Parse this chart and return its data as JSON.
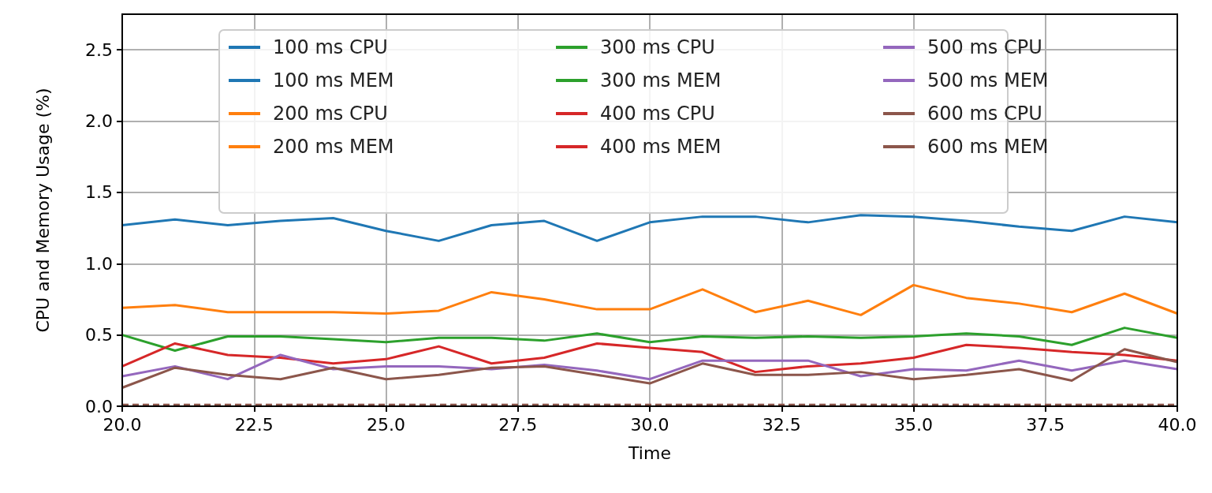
{
  "chart_data": {
    "type": "line",
    "xlabel": "Time",
    "ylabel": "CPU and Memory Usage (%)",
    "x": [
      20,
      21,
      22,
      23,
      24,
      25,
      26,
      27,
      28,
      29,
      30,
      31,
      32,
      33,
      34,
      35,
      36,
      37,
      38,
      39,
      40
    ],
    "xlim": [
      20,
      40
    ],
    "ylim": [
      0,
      2.75
    ],
    "xticks": [
      {
        "value": 20,
        "label": "20.0"
      },
      {
        "value": 22.5,
        "label": "22.5"
      },
      {
        "value": 25,
        "label": "25.0"
      },
      {
        "value": 27.5,
        "label": "27.5"
      },
      {
        "value": 30,
        "label": "30.0"
      },
      {
        "value": 32.5,
        "label": "32.5"
      },
      {
        "value": 35,
        "label": "35.0"
      },
      {
        "value": 37.5,
        "label": "37.5"
      },
      {
        "value": 40,
        "label": "40.0"
      }
    ],
    "yticks": [
      {
        "value": 0,
        "label": "0.0"
      },
      {
        "value": 0.5,
        "label": "0.5"
      },
      {
        "value": 1,
        "label": "1.0"
      },
      {
        "value": 1.5,
        "label": "1.5"
      },
      {
        "value": 2,
        "label": "2.0"
      },
      {
        "value": 2.5,
        "label": "2.5"
      }
    ],
    "grid": true,
    "legend": "top right",
    "marker": "none",
    "series": [
      {
        "name": "100 ms CPU",
        "color": "#1f77b4",
        "line_style": "solid",
        "values": [
          1.27,
          1.31,
          1.27,
          1.3,
          1.32,
          1.23,
          1.16,
          1.27,
          1.3,
          1.16,
          1.29,
          1.33,
          1.33,
          1.29,
          1.34,
          1.33,
          1.3,
          1.26,
          1.23,
          1.33,
          1.29
        ]
      },
      {
        "name": "100 ms MEM",
        "color": "#1f77b4",
        "line_style": "dashed",
        "values": [
          null,
          null,
          null,
          null,
          null,
          null,
          null,
          null,
          null,
          null,
          null,
          null,
          null,
          null,
          null,
          null,
          null,
          null,
          null,
          null,
          null
        ]
      },
      {
        "name": "200 ms CPU",
        "color": "#ff7f0e",
        "line_style": "solid",
        "values": [
          0.69,
          0.71,
          0.66,
          0.66,
          0.66,
          0.65,
          0.67,
          0.8,
          0.75,
          0.68,
          0.68,
          0.82,
          0.66,
          0.74,
          0.64,
          0.85,
          0.76,
          0.72,
          0.66,
          0.79,
          0.65
        ]
      },
      {
        "name": "200 ms MEM",
        "color": "#ff7f0e",
        "line_style": "dashed",
        "values": [
          null,
          null,
          null,
          null,
          null,
          null,
          null,
          null,
          null,
          null,
          null,
          null,
          null,
          null,
          null,
          null,
          null,
          null,
          null,
          null,
          null
        ]
      },
      {
        "name": "300 ms CPU",
        "color": "#2ca02c",
        "line_style": "solid",
        "values": [
          0.5,
          0.39,
          0.49,
          0.49,
          0.47,
          0.45,
          0.48,
          0.48,
          0.46,
          0.51,
          0.45,
          0.49,
          0.48,
          0.49,
          0.48,
          0.49,
          0.51,
          0.49,
          0.43,
          0.55,
          0.48
        ]
      },
      {
        "name": "300 ms MEM",
        "color": "#2ca02c",
        "line_style": "dashed",
        "values": [
          null,
          null,
          null,
          null,
          null,
          null,
          null,
          null,
          null,
          null,
          null,
          null,
          null,
          null,
          null,
          null,
          null,
          null,
          null,
          null,
          null
        ]
      },
      {
        "name": "400 ms CPU",
        "color": "#d62728",
        "line_style": "solid",
        "values": [
          0.28,
          0.44,
          0.36,
          0.34,
          0.3,
          0.33,
          0.42,
          0.3,
          0.34,
          0.44,
          0.41,
          0.38,
          0.24,
          0.28,
          0.3,
          0.34,
          0.43,
          0.41,
          0.38,
          0.36,
          0.32
        ]
      },
      {
        "name": "400 ms MEM",
        "color": "#d62728",
        "line_style": "dashed",
        "values": [
          null,
          null,
          null,
          null,
          null,
          null,
          null,
          null,
          null,
          null,
          null,
          null,
          null,
          null,
          null,
          null,
          null,
          null,
          null,
          null,
          null
        ]
      },
      {
        "name": "500 ms CPU",
        "color": "#9467bd",
        "line_style": "solid",
        "values": [
          0.21,
          0.28,
          0.19,
          0.36,
          0.26,
          0.28,
          0.28,
          0.26,
          0.29,
          0.25,
          0.19,
          0.32,
          0.32,
          0.32,
          0.21,
          0.26,
          0.25,
          0.32,
          0.25,
          0.32,
          0.26
        ]
      },
      {
        "name": "500 ms MEM",
        "color": "#9467bd",
        "line_style": "dashed",
        "values": [
          null,
          null,
          null,
          null,
          null,
          null,
          null,
          null,
          null,
          null,
          null,
          null,
          null,
          null,
          null,
          null,
          null,
          null,
          null,
          null,
          null
        ]
      },
      {
        "name": "600 ms CPU",
        "color": "#8c564b",
        "line_style": "solid",
        "values": [
          0.13,
          0.27,
          0.22,
          0.19,
          0.27,
          0.19,
          0.22,
          0.27,
          0.28,
          0.22,
          0.16,
          0.3,
          0.22,
          0.22,
          0.24,
          0.19,
          0.22,
          0.26,
          0.18,
          0.4,
          0.31
        ]
      },
      {
        "name": "600 ms MEM",
        "color": "#8c564b",
        "line_style": "dashed",
        "values": [
          0.01,
          0.01,
          0.01,
          0.01,
          0.01,
          0.01,
          0.01,
          0.01,
          0.01,
          0.01,
          0.01,
          0.01,
          0.01,
          0.01,
          0.01,
          0.01,
          0.01,
          0.01,
          0.01,
          0.01,
          0.01
        ]
      }
    ]
  }
}
